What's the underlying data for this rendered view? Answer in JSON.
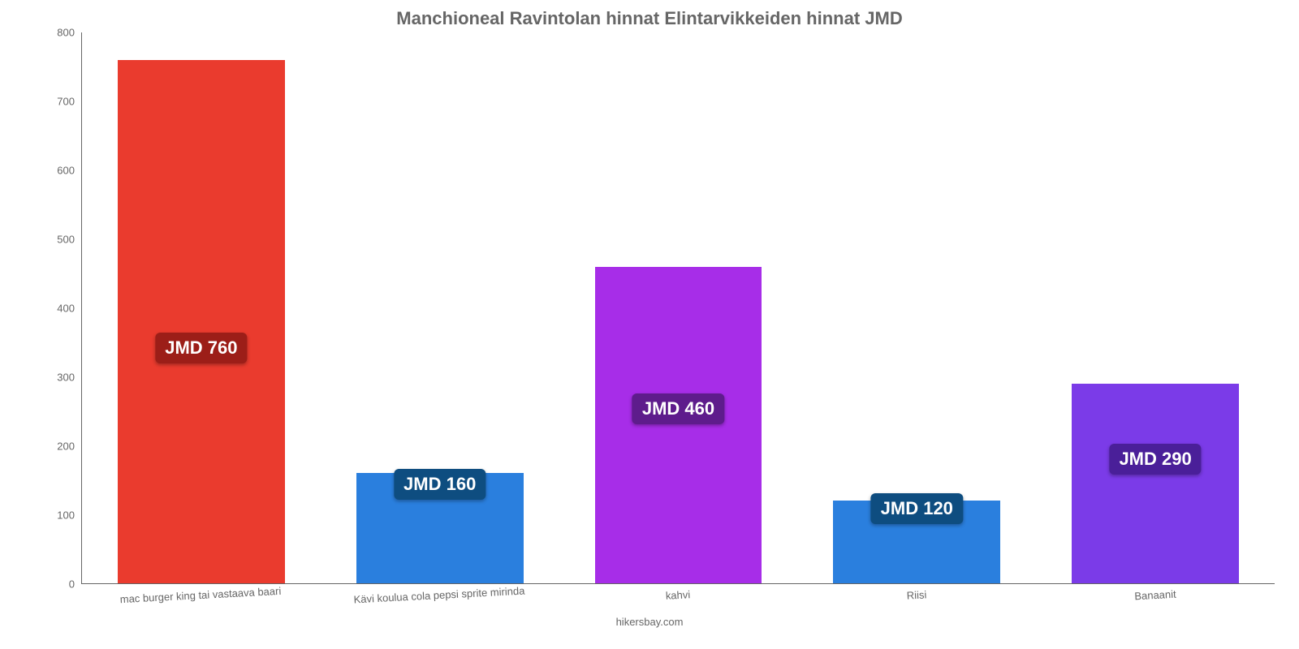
{
  "chart": {
    "type": "bar",
    "title": "Manchioneal Ravintolan hinnat Elintarvikkeiden hinnat JMD",
    "title_fontsize": 22,
    "title_color": "#666666",
    "background_color": "#ffffff",
    "axis_color": "#666666",
    "label_color": "#666666",
    "label_fontsize": 13,
    "credit": "hikersbay.com",
    "ylim": [
      0,
      800
    ],
    "yticks": [
      0,
      100,
      200,
      300,
      400,
      500,
      600,
      700,
      800
    ],
    "bar_width_pct": 70,
    "categories": [
      "mac burger king tai vastaava baari",
      "Kävi koulua cola pepsi sprite mirinda",
      "kahvi",
      "Riisi",
      "Banaanit"
    ],
    "values": [
      760,
      160,
      460,
      120,
      290
    ],
    "value_labels": [
      "JMD 760",
      "JMD 160",
      "JMD 460",
      "JMD 120",
      "JMD 290"
    ],
    "bar_colors": [
      "#ea3b2e",
      "#2a7fde",
      "#a72de8",
      "#2a7fde",
      "#7b3be8"
    ],
    "badge_colors": [
      "#9c1e18",
      "#0e4d80",
      "#5e1c8c",
      "#0e4d80",
      "#4a1f99"
    ],
    "badge_text_color": "#ffffff",
    "badge_fontsize": 22,
    "badge_y_offset_pct": [
      45,
      90,
      55,
      90,
      62
    ],
    "x_label_rotation_deg": -3
  }
}
